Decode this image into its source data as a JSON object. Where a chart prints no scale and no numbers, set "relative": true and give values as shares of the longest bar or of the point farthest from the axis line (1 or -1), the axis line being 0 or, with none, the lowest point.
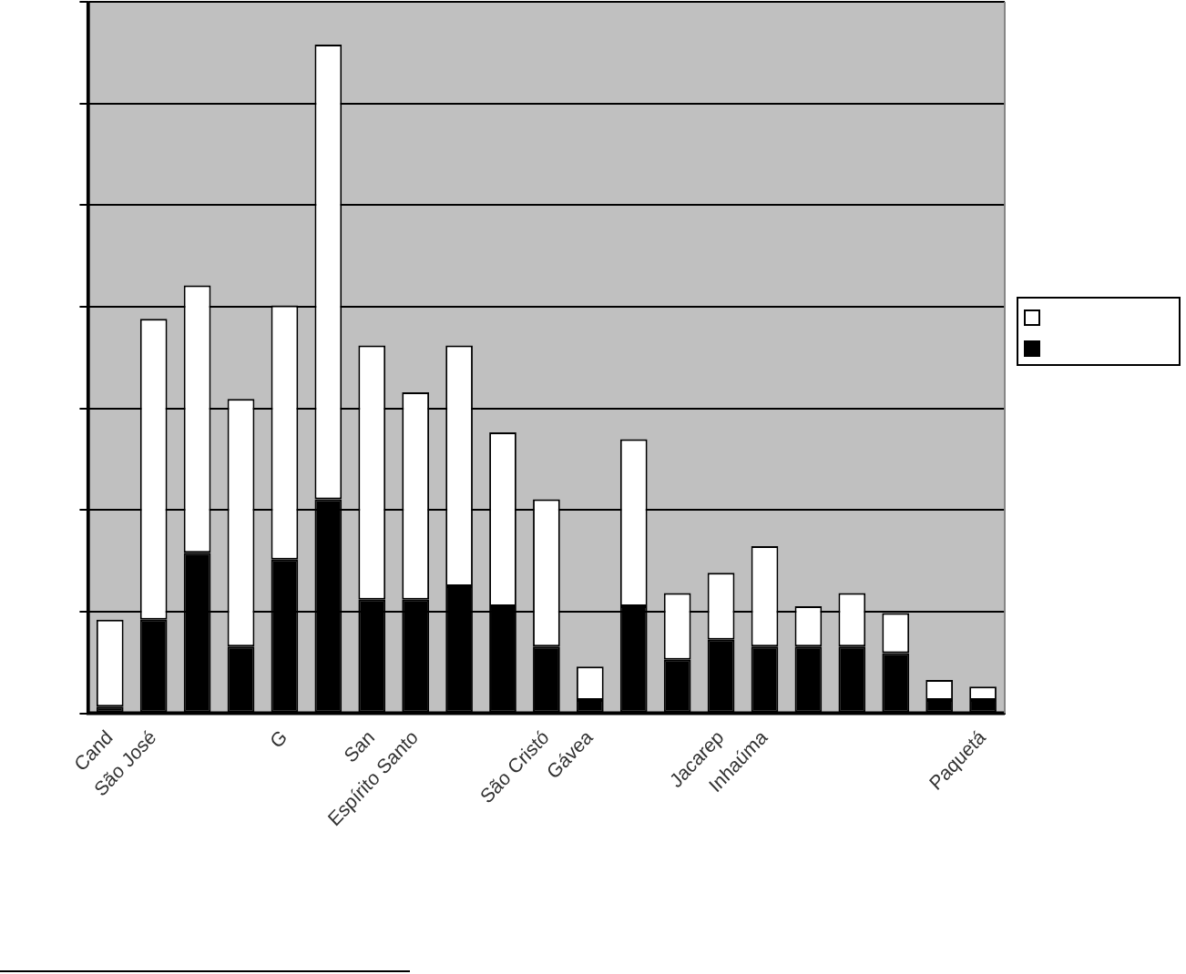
{
  "chart_data": {
    "type": "bar",
    "stacked": true,
    "relative": true,
    "grid": "y",
    "categories": [
      "Cand",
      "São José",
      null,
      null,
      "G",
      null,
      "San",
      "Espírito Santo",
      null,
      null,
      "São Cristó",
      "Gávea",
      null,
      null,
      "Jacarep",
      "Inhaúma",
      null,
      null,
      null,
      null,
      "Paquetá"
    ],
    "series": [
      {
        "color": "#000000",
        "values": [
          0.01,
          0.14,
          0.24,
          0.1,
          0.23,
          0.32,
          0.17,
          0.17,
          0.19,
          0.16,
          0.1,
          0.02,
          0.16,
          0.08,
          0.11,
          0.1,
          0.1,
          0.1,
          0.09,
          0.02,
          0.02
        ]
      },
      {
        "color": "#ffffff",
        "values": [
          0.13,
          0.45,
          0.4,
          0.37,
          0.38,
          0.68,
          0.38,
          0.31,
          0.36,
          0.26,
          0.22,
          0.05,
          0.25,
          0.1,
          0.1,
          0.15,
          0.06,
          0.08,
          0.06,
          0.03,
          0.02
        ]
      }
    ]
  }
}
